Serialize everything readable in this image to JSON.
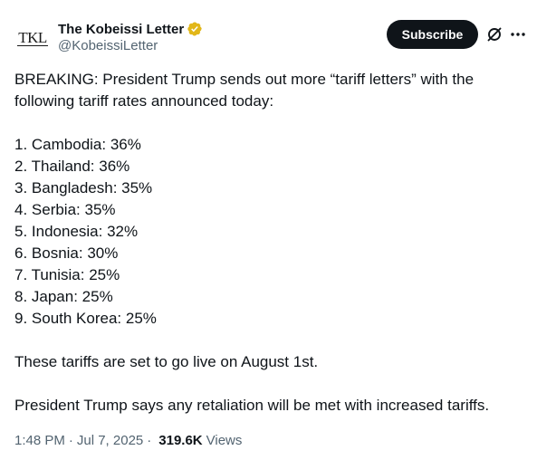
{
  "author": {
    "avatar_text": "TKL",
    "display_name": "The Kobeissi Letter",
    "handle": "@KobeissiLetter",
    "verified_color": "#e2b719"
  },
  "actions": {
    "subscribe_label": "Subscribe",
    "grok_icon": "grok-icon",
    "more_icon": "more-horizontal-icon"
  },
  "tweet": {
    "intro_line1": "BREAKING: President Trump sends out more “tariff letters” with the",
    "intro_line2": "following tariff rates announced today:",
    "list": [
      "1. Cambodia: 36%",
      "2. Thailand: 36%",
      "3. Bangladesh: 35%",
      "4. Serbia: 35%",
      "5. Indonesia: 32%",
      "6. Bosnia: 30%",
      "7. Tunisia: 25%",
      "8. Japan: 25%",
      "9. South Korea: 25%"
    ],
    "closing1": "These tariffs are set to go live on August 1st.",
    "closing2": "President Trump says any retaliation will be met with increased tariffs."
  },
  "meta": {
    "time": "1:48 PM",
    "separator": "·",
    "date": "Jul 7, 2025",
    "separator2": "·",
    "views_count": "319.6K",
    "views_label": "Views"
  }
}
